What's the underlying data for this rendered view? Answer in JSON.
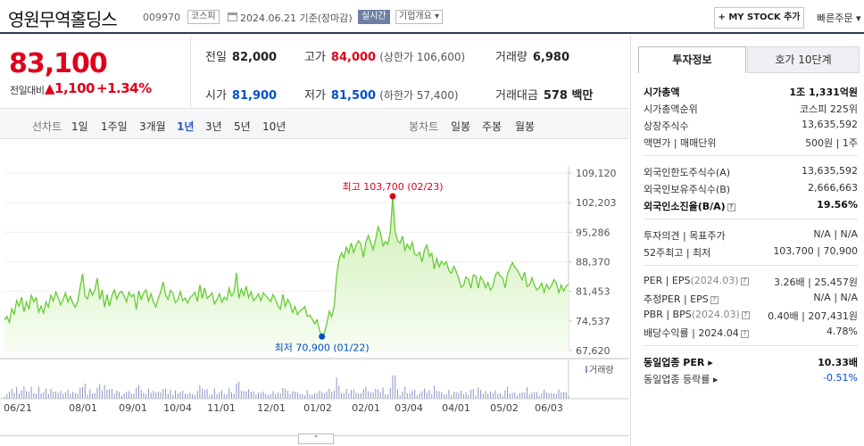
{
  "header": {
    "name": "영원무역홀딩스",
    "code": "009970",
    "market": "코스피",
    "date_text": "2024.06.21 기준(장마감)",
    "realtime_label": "실시간",
    "company_label": "기업개요 ▾",
    "mystock_label": "+ MY STOCK 추가",
    "order_label": "빠른주문 ▾"
  },
  "price": {
    "current": "83,100",
    "change_label": "전일대비",
    "change": "▲1,100",
    "change_pct": "+1.34%"
  },
  "stats": {
    "prev_label": "전일",
    "prev": "82,000",
    "high_label": "고가",
    "high": "84,000",
    "upper_limit": "(상한가 106,600)",
    "volume_label": "거래량",
    "volume": "6,980",
    "open_label": "시가",
    "open": "81,900",
    "low_label": "저가",
    "low": "81,500",
    "lower_limit": "(하한가 57,400)",
    "amount_label": "거래대금",
    "amount": "578 백만"
  },
  "period": {
    "line_label": "선차트",
    "line_items": [
      "1일",
      "1주일",
      "3개월",
      "1년",
      "3년",
      "5년",
      "10년"
    ],
    "candle_label": "봉차트",
    "candle_items": [
      "일봉",
      "주봉",
      "월봉"
    ],
    "active": "1년"
  },
  "colors": {
    "up": "#e0001a",
    "down": "#0050c8",
    "line": "#66cc33",
    "fill": "#eaf8e0"
  },
  "chart_data": {
    "type": "area",
    "y_ticks": [
      "109,120",
      "102,203",
      "95,286",
      "88,370",
      "81,453",
      "74,537",
      "67,620"
    ],
    "ylim": [
      67620,
      109120
    ],
    "x_labels": [
      "06/21",
      "08/01",
      "09/01",
      "10/04",
      "11/01",
      "12/01",
      "01/02",
      "02/01",
      "03/04",
      "04/01",
      "05/02",
      "06/03"
    ],
    "high_label": "최고 103,700 (02/23)",
    "high_value": 103700,
    "low_label": "최저 70,900 (01/22)",
    "low_value": 70900,
    "volume_label": "거래량",
    "values": [
      74800,
      75600,
      74200,
      77400,
      76100,
      79300,
      78000,
      80100,
      76700,
      79000,
      77300,
      80600,
      79100,
      80000,
      76600,
      78000,
      76400,
      79000,
      77800,
      80600,
      79200,
      81300,
      80000,
      78300,
      79600,
      81100,
      79000,
      80300,
      78700,
      77800,
      79100,
      82400,
      85600,
      80300,
      79700,
      82000,
      80600,
      81700,
      84600,
      79600,
      81800,
      77800,
      80700,
      78000,
      80500,
      81800,
      79700,
      81000,
      81500,
      80400,
      79000,
      81300,
      80200,
      80800,
      77200,
      81600,
      79600,
      81100,
      81800,
      79200,
      80900,
      78900,
      77800,
      79900,
      81300,
      83700,
      80600,
      79600,
      81700,
      81000,
      78800,
      79500,
      81400,
      79300,
      79900,
      78700,
      80000,
      80500,
      81200,
      79100,
      83000,
      79800,
      82200,
      79800,
      80400,
      81100,
      78500,
      79500,
      80900,
      78900,
      80100,
      79500,
      82200,
      80400,
      81300,
      85800,
      79800,
      82000,
      80500,
      82700,
      80000,
      81400,
      79300,
      79900,
      80900,
      79300,
      81100,
      80500,
      79800,
      79100,
      80700,
      79500,
      78000,
      77300,
      80800,
      77900,
      79600,
      78500,
      76500,
      77900,
      76000,
      76900,
      77300,
      77900,
      75600,
      75900,
      75000,
      73900,
      74800,
      72400,
      70900,
      71700,
      73900,
      76800,
      75500,
      77900,
      85100,
      88900,
      90500,
      89300,
      91800,
      90400,
      92800,
      90500,
      92300,
      93300,
      92500,
      89400,
      93000,
      94500,
      92800,
      91200,
      93700,
      96600,
      95100,
      92100,
      93100,
      92500,
      95400,
      103700,
      95500,
      93300,
      92700,
      94400,
      91100,
      92500,
      91300,
      93000,
      90100,
      89800,
      90600,
      88300,
      91200,
      92300,
      89600,
      90400,
      86700,
      89100,
      87200,
      88500,
      87700,
      88400,
      86300,
      85700,
      87300,
      86100,
      84500,
      82400,
      82900,
      84800,
      84300,
      82200,
      85300,
      85100,
      82200,
      84900,
      84000,
      82300,
      83600,
      81800,
      82600,
      85200,
      86000,
      85100,
      84600,
      82300,
      85600,
      86900,
      88200,
      87100,
      86500,
      85300,
      84200,
      86000,
      82600,
      82900,
      84600,
      83000,
      81800,
      82300,
      83400,
      81300,
      83100,
      82000,
      82800,
      84200,
      83400,
      81200,
      83000,
      81500,
      82700,
      83100
    ]
  },
  "info_tabs": {
    "active": "투자정보",
    "other": "호가 10단계"
  },
  "info": {
    "market_cap_label": "시가총액",
    "market_cap": "1조 1,331억원",
    "rank_label": "시가총액순위",
    "rank": "코스피 225위",
    "shares_label": "상장주식수",
    "shares": "13,635,592",
    "par_label": "액면가 | 매매단위",
    "par": "500원 | 1주",
    "foreign_limit_label": "외국인한도주식수(A)",
    "foreign_limit": "13,635,592",
    "foreign_hold_label": "외국인보유주식수(B)",
    "foreign_hold": "2,666,663",
    "foreign_ratio_label": "외국인소진율(B/A)",
    "foreign_ratio": "19.56%",
    "opinion_label": "투자의견 | 목표주가",
    "opinion": "N/A | N/A",
    "w52_label": "52주최고 | 최저",
    "w52": "103,700 | 70,900",
    "per_label": "PER | EPS",
    "per_date": "(2024.03)",
    "per": "3.26배",
    "eps": "25,457원",
    "est_label": "추정PER | EPS",
    "est": "N/A | N/A",
    "pbr_label": "PBR | BPS",
    "pbr_date": "(2024.03)",
    "pbr": "0.40배",
    "bps": "207,431원",
    "div_label": "배당수익률",
    "div_date": "2024.04",
    "div": "4.78%",
    "ind_per_label": "동일업종 PER",
    "ind_per": "10.33배",
    "ind_rate_label": "동일업종 등락률",
    "ind_rate": "-0.51%"
  }
}
